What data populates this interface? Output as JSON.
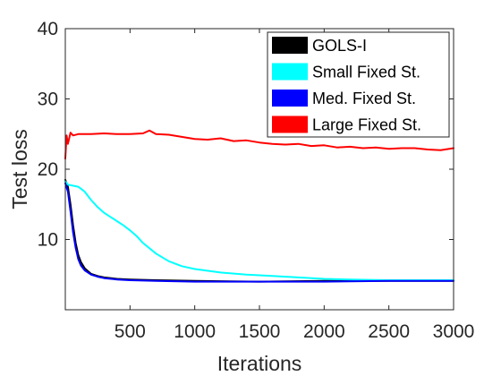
{
  "chart_data": {
    "type": "line",
    "xlabel": "Iterations",
    "ylabel": "Test loss",
    "xlim": [
      0,
      3000
    ],
    "ylim": [
      0,
      40
    ],
    "xticks": [
      500,
      1000,
      1500,
      2000,
      2500,
      3000
    ],
    "yticks": [
      10,
      20,
      30,
      40
    ],
    "grid": false,
    "legend_position": "top-right",
    "series": [
      {
        "name": "GOLS-I",
        "color": "#000000",
        "x": [
          0,
          20,
          40,
          60,
          80,
          100,
          120,
          150,
          200,
          250,
          300,
          400,
          500,
          700,
          1000,
          1500,
          2000,
          2500,
          3000
        ],
        "y": [
          18.5,
          17.5,
          15.0,
          12.0,
          9.5,
          7.8,
          6.8,
          5.9,
          5.1,
          4.8,
          4.6,
          4.4,
          4.3,
          4.2,
          4.1,
          4.0,
          4.1,
          4.1,
          4.1
        ]
      },
      {
        "name": "Small Fixed St.",
        "color": "#00ffff",
        "x": [
          0,
          20,
          50,
          100,
          150,
          200,
          250,
          300,
          350,
          400,
          450,
          500,
          550,
          600,
          700,
          800,
          900,
          1000,
          1200,
          1400,
          1600,
          1800,
          2000,
          2200,
          2500,
          2800,
          3000
        ],
        "y": [
          18.3,
          17.8,
          17.7,
          17.5,
          16.8,
          15.6,
          14.6,
          13.8,
          13.2,
          12.6,
          12.0,
          11.3,
          10.5,
          9.5,
          8.0,
          6.9,
          6.2,
          5.8,
          5.3,
          5.0,
          4.8,
          4.6,
          4.4,
          4.3,
          4.2,
          4.2,
          4.2
        ]
      },
      {
        "name": "Med. Fixed St.",
        "color": "#0000ff",
        "x": [
          0,
          20,
          40,
          60,
          80,
          100,
          120,
          150,
          200,
          250,
          300,
          400,
          500,
          700,
          1000,
          1500,
          2000,
          2500,
          3000
        ],
        "y": [
          18.0,
          16.8,
          14.0,
          11.0,
          8.8,
          7.2,
          6.3,
          5.6,
          5.0,
          4.7,
          4.5,
          4.3,
          4.2,
          4.1,
          4.0,
          4.0,
          4.0,
          4.1,
          4.1
        ]
      },
      {
        "name": "Large Fixed St.",
        "color": "#ff0000",
        "x": [
          0,
          10,
          20,
          40,
          60,
          100,
          200,
          300,
          400,
          500,
          600,
          650,
          700,
          800,
          900,
          1000,
          1100,
          1200,
          1300,
          1400,
          1500,
          1600,
          1700,
          1800,
          1900,
          2000,
          2100,
          2200,
          2300,
          2400,
          2500,
          2600,
          2700,
          2800,
          2900,
          3000
        ],
        "y": [
          21.5,
          24.8,
          23.6,
          25.2,
          24.8,
          25.0,
          25.0,
          25.1,
          25.0,
          25.0,
          25.1,
          25.5,
          25.0,
          24.9,
          24.6,
          24.3,
          24.2,
          24.4,
          24.0,
          24.1,
          23.8,
          23.6,
          23.5,
          23.6,
          23.3,
          23.4,
          23.1,
          23.2,
          23.0,
          23.1,
          22.9,
          23.0,
          23.0,
          22.8,
          22.7,
          23.0
        ]
      }
    ]
  }
}
